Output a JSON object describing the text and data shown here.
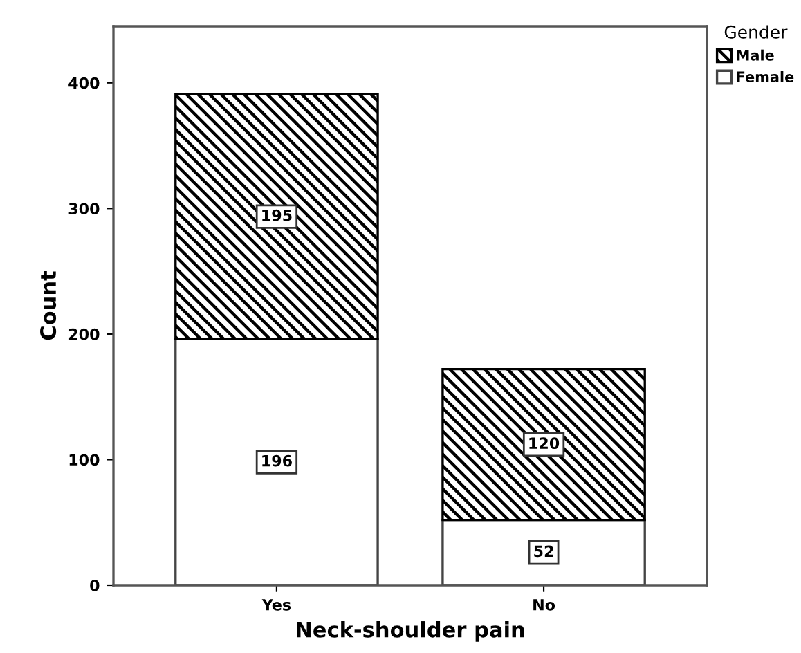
{
  "chart_data": {
    "type": "bar",
    "stacked": true,
    "xlabel": "Neck-shoulder pain",
    "ylabel": "Count",
    "legend_title": "Gender",
    "categories": [
      "Yes",
      "No"
    ],
    "series": [
      {
        "name": "Female",
        "color": "#ffffff",
        "values": [
          196,
          52
        ]
      },
      {
        "name": "Male",
        "color": "#000000",
        "values": [
          195,
          120
        ]
      }
    ],
    "ylim": [
      0,
      445
    ],
    "yticks": [
      0,
      100,
      200,
      300,
      400
    ],
    "grid": false,
    "legend": "top right",
    "data_labels": true
  }
}
